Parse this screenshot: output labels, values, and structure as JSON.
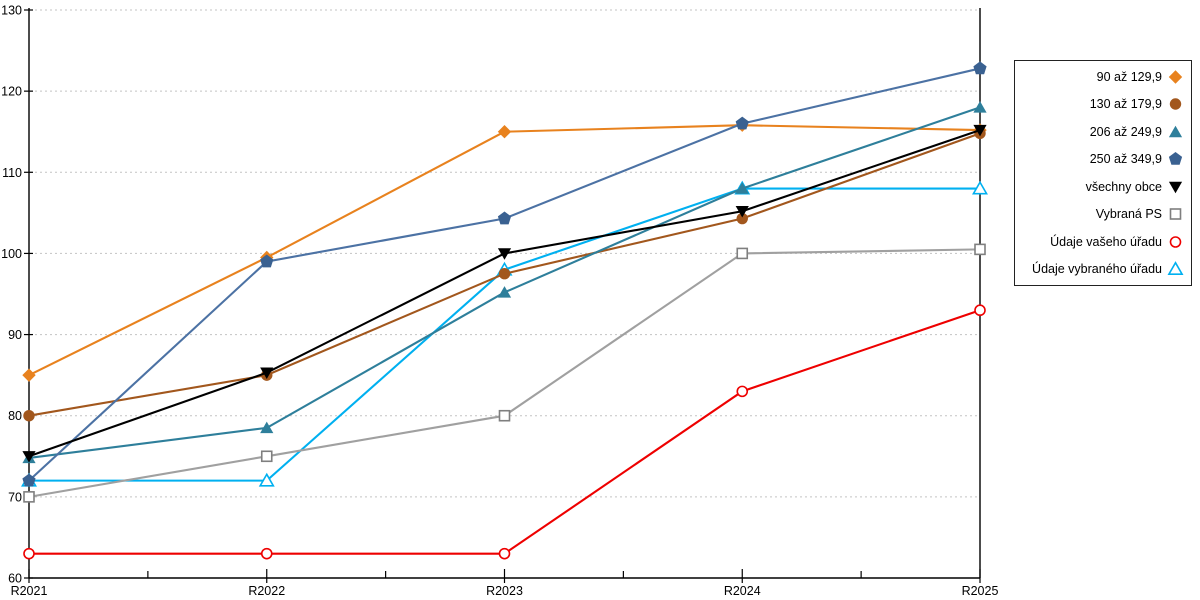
{
  "chart_data": {
    "type": "line",
    "title": "",
    "xlabel": "",
    "ylabel": "",
    "categories": [
      "R2021",
      "R2022",
      "R2023",
      "R2024",
      "R2025"
    ],
    "y_ticks": [
      60,
      70,
      80,
      90,
      100,
      110,
      120,
      130
    ],
    "ylim": [
      60,
      130
    ],
    "grid": "horizontal-dashed",
    "legend_position": "right",
    "series": [
      {
        "name": "90 až 129,9",
        "color": "#E8821E",
        "marker": "diamond",
        "fill": "solid",
        "values": [
          85,
          99.5,
          115,
          115.8,
          115.2
        ]
      },
      {
        "name": "130 až 179,9",
        "color": "#A2571D",
        "marker": "circle",
        "fill": "solid",
        "values": [
          80,
          85,
          97.5,
          104.3,
          114.8
        ]
      },
      {
        "name": "206 až 249,9",
        "color": "#2E7F9B",
        "marker": "triangle-up",
        "fill": "solid",
        "values": [
          74.8,
          78.5,
          95.2,
          108,
          118
        ]
      },
      {
        "name": "250 až 349,9",
        "color": "#4C72A4",
        "marker": "pentagon",
        "fill": "solid",
        "marker_color": "#3A6191",
        "values": [
          72,
          99,
          104.3,
          116,
          122.8
        ]
      },
      {
        "name": "všechny obce",
        "color": "#000000",
        "marker": "triangle-down",
        "fill": "solid",
        "values": [
          75,
          85.3,
          100,
          105.2,
          115.2
        ]
      },
      {
        "name": "Vybraná PS",
        "color": "#A0A0A0",
        "marker": "square",
        "fill": "open",
        "marker_color": "#7F7F7F",
        "values": [
          70,
          75,
          80,
          100,
          100.5
        ]
      },
      {
        "name": "Údaje vašeho úřadu",
        "color": "#EE0000",
        "marker": "circle",
        "fill": "open",
        "values": [
          63,
          63,
          63,
          83,
          93
        ]
      },
      {
        "name": "Údaje vybraného úřadu",
        "color": "#00B0F0",
        "marker": "triangle-up",
        "fill": "open",
        "values": [
          72,
          72,
          98,
          108,
          108
        ]
      }
    ],
    "draw_order": [
      7,
      5,
      6,
      0,
      1,
      2,
      3,
      4
    ]
  }
}
